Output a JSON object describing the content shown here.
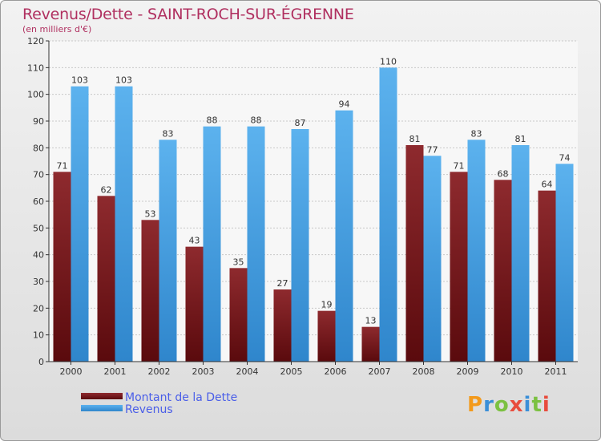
{
  "header": {
    "title": "Revenus/Dette - SAINT-ROCH-SUR-ÉGRENNE",
    "subtitle": "(en milliers d'€)"
  },
  "logo": {
    "text": "Proxiti",
    "colors": [
      "#f39a1c",
      "#3a8fd8",
      "#7cc142",
      "#e84c3d",
      "#3a8fd8",
      "#7cc142",
      "#e84c3d"
    ]
  },
  "colors": {
    "debt": "#7a1f22",
    "revenue": "#4aa3e6"
  },
  "chart_data": {
    "type": "bar",
    "title": "Revenus/Dette - SAINT-ROCH-SUR-ÉGRENNE",
    "ylabel": "(en milliers d'€)",
    "ylim": [
      0,
      120
    ],
    "yticks": [
      0,
      10,
      20,
      30,
      40,
      50,
      60,
      70,
      80,
      90,
      100,
      110,
      120
    ],
    "grid": true,
    "legend": "bottom-left",
    "categories": [
      "2000",
      "2001",
      "2002",
      "2003",
      "2004",
      "2005",
      "2006",
      "2007",
      "2008",
      "2009",
      "2010",
      "2011"
    ],
    "series": [
      {
        "name": "Montant de la Dette",
        "values": [
          71,
          62,
          53,
          43,
          35,
          27,
          19,
          13,
          81,
          71,
          68,
          64
        ]
      },
      {
        "name": "Revenus",
        "values": [
          103,
          103,
          83,
          88,
          88,
          87,
          94,
          110,
          77,
          83,
          81,
          74
        ]
      }
    ]
  }
}
